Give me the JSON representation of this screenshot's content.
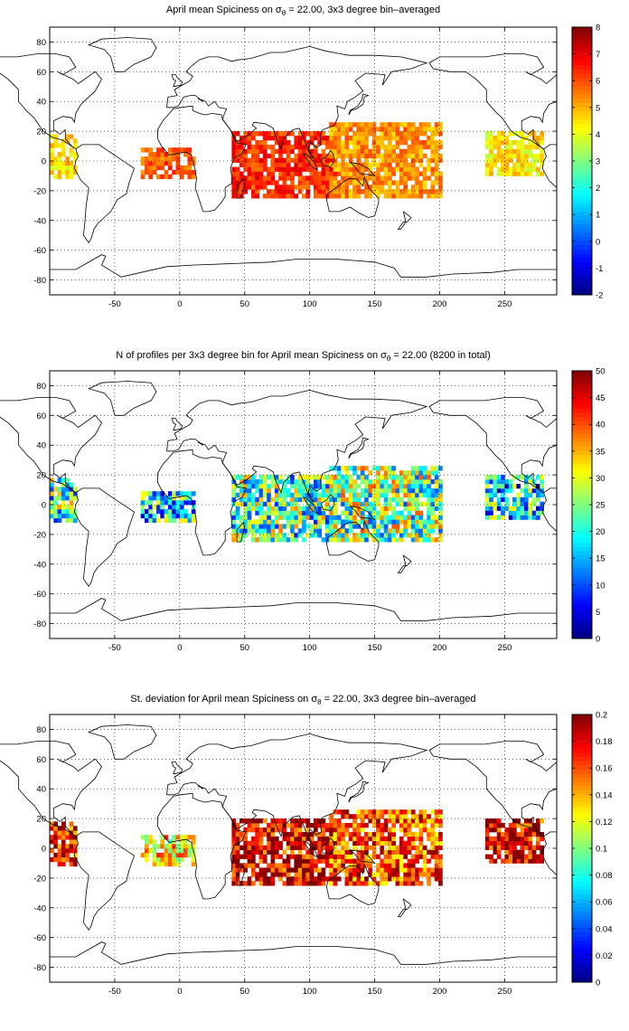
{
  "panels": [
    {
      "title_pre": "April mean Spiciness on σ",
      "title_sub": "θ",
      "title_post": " = 22.00, 3x3 degree bin–averaged",
      "colorbar": {
        "ticks": [
          "8",
          "7",
          "6",
          "5",
          "4",
          "3",
          "2",
          "1",
          "0",
          "-1",
          "-2"
        ],
        "min": -2,
        "max": 8
      }
    },
    {
      "title_pre": "N of profiles per 3x3 degree bin for April mean Spiciness on σ",
      "title_sub": "θ",
      "title_post": " = 22.00 (8200 in total)",
      "colorbar": {
        "ticks": [
          "50",
          "45",
          "40",
          "35",
          "30",
          "25",
          "20",
          "15",
          "10",
          "5",
          "0"
        ],
        "min": 0,
        "max": 50
      }
    },
    {
      "title_pre": "St. deviation for April mean Spiciness on σ",
      "title_sub": "θ",
      "title_post": " = 22.00, 3x3 degree bin–averaged",
      "colorbar": {
        "ticks": [
          "0.2",
          "0.18",
          "0.16",
          "0.14",
          "0.12",
          "0.1",
          "0.08",
          "0.06",
          "0.04",
          "0.02",
          "0"
        ],
        "min": 0,
        "max": 0.2
      }
    }
  ],
  "map": {
    "xlim": [
      -100,
      290
    ],
    "ylim": [
      -90,
      90
    ],
    "xticks": [
      -50,
      0,
      50,
      100,
      150,
      200,
      250
    ],
    "yticks": [
      80,
      60,
      40,
      20,
      0,
      -20,
      -40,
      -60,
      -80
    ],
    "xtick_labels": [
      "-50",
      "0",
      "50",
      "100",
      "150",
      "200",
      "250"
    ],
    "ytick_labels": [
      "80",
      "60",
      "40",
      "20",
      "0",
      "-20",
      "-40",
      "-60",
      "-80"
    ],
    "grid": "dotted"
  },
  "regions": [
    {
      "x0": -100,
      "x1": -80,
      "y0": -12,
      "y1": 18,
      "v": [
        4.6,
        0.45,
        0.17
      ]
    },
    {
      "x0": -30,
      "x1": 10,
      "y0": -12,
      "y1": 8,
      "v": [
        5.9,
        0.35,
        0.13
      ]
    },
    {
      "x0": 40,
      "x1": 120,
      "y0": -25,
      "y1": 20,
      "v": [
        6.3,
        0.45,
        0.18
      ]
    },
    {
      "x0": 115,
      "x1": 200,
      "y0": -25,
      "y1": 25,
      "v": [
        5.3,
        0.5,
        0.16
      ]
    },
    {
      "x0": 235,
      "x1": 280,
      "y0": -10,
      "y1": 18,
      "v": [
        4.4,
        0.35,
        0.18
      ]
    }
  ]
}
